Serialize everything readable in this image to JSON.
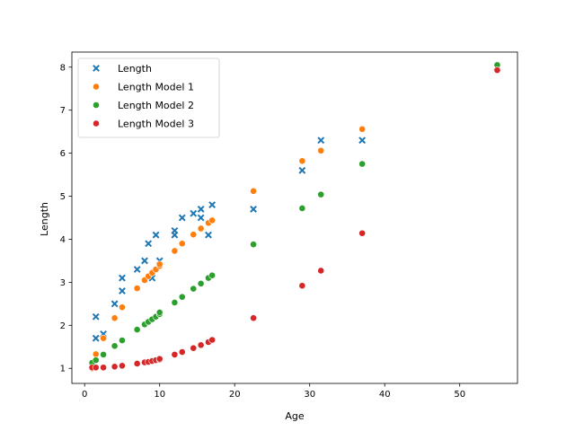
{
  "chart_data": {
    "type": "scatter",
    "title": "",
    "xlabel": "Age",
    "ylabel": "Length",
    "xlim": [
      -1.7,
      57.7
    ],
    "ylim": [
      0.65,
      8.35
    ],
    "xticks": [
      0,
      10,
      20,
      30,
      40,
      50
    ],
    "yticks": [
      1,
      2,
      3,
      4,
      5,
      6,
      7,
      8
    ],
    "grid": false,
    "legend": "top-left",
    "series": [
      {
        "name": "Length",
        "marker": "x",
        "color": "#1f77b4",
        "points": [
          [
            1.5,
            1.7
          ],
          [
            1.5,
            2.2
          ],
          [
            2.5,
            1.8
          ],
          [
            4,
            2.5
          ],
          [
            5,
            2.8
          ],
          [
            5,
            3.1
          ],
          [
            7,
            3.3
          ],
          [
            8,
            3.5
          ],
          [
            8.5,
            3.9
          ],
          [
            9,
            3.1
          ],
          [
            9.5,
            4.1
          ],
          [
            10,
            3.5
          ],
          [
            12,
            4.1
          ],
          [
            12,
            4.2
          ],
          [
            13,
            4.5
          ],
          [
            14.5,
            4.6
          ],
          [
            15.5,
            4.5
          ],
          [
            15.5,
            4.7
          ],
          [
            16.5,
            4.1
          ],
          [
            17,
            4.8
          ],
          [
            22.5,
            4.7
          ],
          [
            29,
            5.6
          ],
          [
            31.5,
            6.3
          ],
          [
            37,
            6.3
          ],
          [
            55,
            8.0
          ]
        ]
      },
      {
        "name": "Length Model 1",
        "marker": "o",
        "color": "#ff7f0e",
        "points": [
          [
            1,
            1.0
          ],
          [
            1.5,
            1.33
          ],
          [
            2.5,
            1.7
          ],
          [
            4,
            2.17
          ],
          [
            5,
            2.42
          ],
          [
            7,
            2.86
          ],
          [
            8,
            3.05
          ],
          [
            8.5,
            3.14
          ],
          [
            9,
            3.22
          ],
          [
            9.5,
            3.3
          ],
          [
            10,
            3.38
          ],
          [
            10,
            3.42
          ],
          [
            12,
            3.73
          ],
          [
            13,
            3.9
          ],
          [
            14.5,
            4.11
          ],
          [
            15.5,
            4.25
          ],
          [
            16.5,
            4.38
          ],
          [
            17,
            4.44
          ],
          [
            22.5,
            5.12
          ],
          [
            29,
            5.82
          ],
          [
            31.5,
            6.06
          ],
          [
            37,
            6.56
          ],
          [
            55,
            8.02
          ]
        ]
      },
      {
        "name": "Length Model 2",
        "marker": "o",
        "color": "#2ca02c",
        "points": [
          [
            1,
            1.13
          ],
          [
            1.5,
            1.19
          ],
          [
            2.5,
            1.32
          ],
          [
            4,
            1.52
          ],
          [
            5,
            1.65
          ],
          [
            7,
            1.9
          ],
          [
            8,
            2.02
          ],
          [
            8.5,
            2.08
          ],
          [
            9,
            2.14
          ],
          [
            9.5,
            2.2
          ],
          [
            10,
            2.26
          ],
          [
            10,
            2.3
          ],
          [
            12,
            2.53
          ],
          [
            13,
            2.66
          ],
          [
            14.5,
            2.85
          ],
          [
            15.5,
            2.97
          ],
          [
            16.5,
            3.1
          ],
          [
            17,
            3.16
          ],
          [
            22.5,
            3.88
          ],
          [
            29,
            4.72
          ],
          [
            31.5,
            5.04
          ],
          [
            37,
            5.75
          ],
          [
            55,
            8.05
          ]
        ]
      },
      {
        "name": "Length Model 3",
        "marker": "o",
        "color": "#d62728",
        "points": [
          [
            1,
            1.02
          ],
          [
            1.5,
            1.02
          ],
          [
            2.5,
            1.02
          ],
          [
            4,
            1.04
          ],
          [
            5,
            1.06
          ],
          [
            7,
            1.11
          ],
          [
            8,
            1.14
          ],
          [
            8.5,
            1.15
          ],
          [
            9,
            1.17
          ],
          [
            9.5,
            1.19
          ],
          [
            10,
            1.2
          ],
          [
            10,
            1.22
          ],
          [
            12,
            1.32
          ],
          [
            13,
            1.38
          ],
          [
            14.5,
            1.47
          ],
          [
            15.5,
            1.54
          ],
          [
            16.5,
            1.61
          ],
          [
            17,
            1.66
          ],
          [
            22.5,
            2.17
          ],
          [
            29,
            2.92
          ],
          [
            31.5,
            3.27
          ],
          [
            37,
            4.14
          ],
          [
            55,
            7.93
          ]
        ]
      }
    ]
  }
}
